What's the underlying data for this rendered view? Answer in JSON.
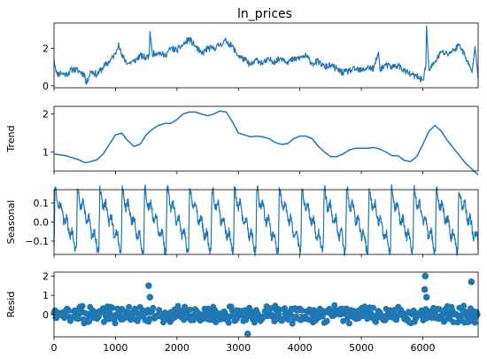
{
  "chart_data": {
    "type": "line",
    "title": "ln_prices",
    "x_ticks": [
      "0",
      "1000",
      "2000",
      "3000",
      "4000",
      "5000",
      "6000"
    ],
    "xlim": [
      0,
      6900
    ],
    "color": "#1f77b4",
    "grid": false,
    "panels": [
      {
        "name": "observed",
        "ylabel": "",
        "type": "line",
        "ylim": [
          -0.1,
          3.35
        ],
        "y_ticks": [
          0,
          2
        ],
        "y_tick_labels": [
          "0",
          "2"
        ],
        "x": [
          0,
          50,
          100,
          200,
          300,
          400,
          500,
          520,
          600,
          700,
          800,
          900,
          1000,
          1050,
          1100,
          1200,
          1300,
          1400,
          1500,
          1550,
          1560,
          1600,
          1700,
          1800,
          1900,
          2000,
          2100,
          2200,
          2300,
          2400,
          2500,
          2600,
          2700,
          2800,
          2900,
          3000,
          3100,
          3200,
          3300,
          3400,
          3500,
          3600,
          3700,
          3800,
          3900,
          4000,
          4100,
          4200,
          4300,
          4400,
          4500,
          4600,
          4700,
          4800,
          4900,
          5000,
          5100,
          5200,
          5280,
          5300,
          5400,
          5500,
          5600,
          5700,
          5800,
          5900,
          6000,
          6050,
          6060,
          6100,
          6200,
          6300,
          6400,
          6500,
          6600,
          6700,
          6800,
          6850,
          6900
        ],
        "y": [
          1.4,
          0.6,
          0.7,
          0.6,
          0.9,
          0.8,
          0.6,
          0.1,
          0.8,
          0.6,
          1.0,
          1.3,
          1.7,
          2.3,
          1.6,
          1.2,
          1.3,
          1.6,
          1.5,
          1.6,
          2.9,
          1.7,
          1.8,
          1.6,
          2.0,
          1.9,
          2.2,
          2.5,
          2.1,
          1.7,
          2.0,
          2.0,
          2.2,
          2.4,
          2.1,
          1.6,
          1.4,
          1.1,
          1.4,
          1.2,
          1.4,
          1.3,
          1.5,
          1.3,
          1.4,
          1.5,
          1.6,
          1.2,
          1.3,
          1.0,
          1.1,
          0.9,
          0.7,
          0.8,
          0.9,
          0.8,
          1.0,
          0.9,
          1.8,
          0.9,
          1.1,
          1.0,
          1.1,
          0.8,
          0.6,
          0.5,
          0.3,
          1.1,
          3.2,
          0.8,
          1.3,
          1.8,
          1.7,
          1.9,
          2.2,
          1.5,
          0.7,
          2.1,
          0.4
        ]
      },
      {
        "name": "trend",
        "ylabel": "Trend",
        "type": "line",
        "ylim": [
          0.5,
          2.2
        ],
        "y_ticks": [
          1,
          2
        ],
        "y_tick_labels": [
          "1",
          "2"
        ],
        "x": [
          0,
          200,
          400,
          500,
          600,
          700,
          800,
          900,
          1000,
          1100,
          1200,
          1300,
          1400,
          1500,
          1600,
          1700,
          1800,
          1900,
          2000,
          2100,
          2200,
          2300,
          2400,
          2500,
          2600,
          2700,
          2800,
          2900,
          3000,
          3100,
          3200,
          3300,
          3400,
          3500,
          3600,
          3700,
          3800,
          3900,
          4000,
          4100,
          4200,
          4300,
          4400,
          4500,
          4600,
          4700,
          4800,
          4900,
          5000,
          5100,
          5200,
          5300,
          5400,
          5500,
          5600,
          5700,
          5800,
          5900,
          6000,
          6100,
          6200,
          6300,
          6400,
          6500,
          6600,
          6700,
          6800,
          6900
        ],
        "y": [
          0.95,
          0.9,
          0.8,
          0.72,
          0.75,
          0.8,
          0.95,
          1.2,
          1.45,
          1.5,
          1.3,
          1.15,
          1.2,
          1.45,
          1.6,
          1.7,
          1.75,
          1.75,
          1.85,
          2.0,
          2.05,
          2.05,
          2.0,
          1.95,
          2.0,
          2.08,
          2.05,
          1.8,
          1.5,
          1.45,
          1.4,
          1.42,
          1.4,
          1.35,
          1.25,
          1.2,
          1.22,
          1.35,
          1.42,
          1.42,
          1.35,
          1.15,
          1.0,
          0.88,
          0.88,
          0.95,
          1.05,
          1.1,
          1.1,
          1.1,
          1.12,
          1.08,
          1.0,
          0.9,
          0.9,
          0.78,
          0.75,
          0.88,
          1.2,
          1.55,
          1.7,
          1.55,
          1.3,
          1.1,
          0.9,
          0.7,
          0.55,
          0.4
        ]
      },
      {
        "name": "seasonal",
        "ylabel": "Seasonal",
        "type": "line",
        "ylim": [
          -0.17,
          0.17
        ],
        "y_ticks": [
          0.1,
          0.0,
          -0.1
        ],
        "y_tick_labels": [
          "0.1",
          "0.0",
          "−0.1"
        ],
        "period": 365,
        "amplitude_max": 0.15,
        "amplitude_min": -0.14
      },
      {
        "name": "resid",
        "ylabel": "Resid",
        "type": "scatter",
        "ylim": [
          -1.15,
          2.2
        ],
        "y_ticks": [
          0,
          1,
          2
        ],
        "y_tick_labels": [
          "0",
          "1",
          "2"
        ],
        "outliers": [
          {
            "x": 1540,
            "y": 1.5
          },
          {
            "x": 1560,
            "y": 0.9
          },
          {
            "x": 6040,
            "y": 2.0
          },
          {
            "x": 6030,
            "y": 1.3
          },
          {
            "x": 6060,
            "y": 0.9
          },
          {
            "x": 6790,
            "y": 1.7
          },
          {
            "x": 3150,
            "y": -1.0
          }
        ]
      }
    ]
  }
}
